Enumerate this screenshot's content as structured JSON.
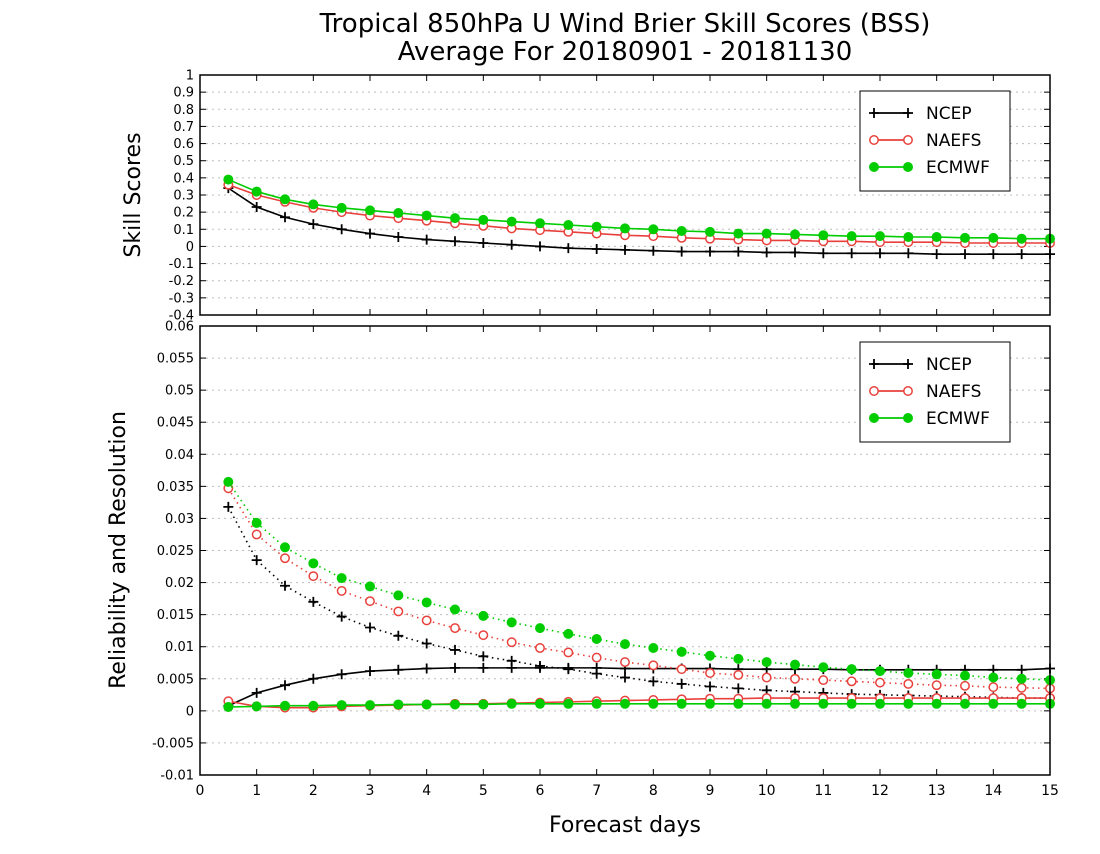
{
  "title_line1": "Tropical 850hPa U Wind Brier Skill Scores (BSS)",
  "title_line2": "Average For 20180901 - 20181130",
  "xlabel": "Forecast days",
  "colors": {
    "NCEP": "#000000",
    "NAEFS": "#e8413c",
    "ECMWF": "#00cc00"
  },
  "chart_data": [
    {
      "type": "line",
      "ylabel": "Skill Scores",
      "xlim": [
        0,
        15
      ],
      "ylim": [
        -0.4,
        1
      ],
      "xticks": [
        "0",
        "1",
        "2",
        "3",
        "4",
        "5",
        "6",
        "7",
        "8",
        "9",
        "10",
        "11",
        "12",
        "13",
        "14",
        "15"
      ],
      "yticks": [
        "1",
        "0.9",
        "0.8",
        "0.7",
        "0.6",
        "0.5",
        "0.4",
        "0.3",
        "0.2",
        "0.1",
        "0",
        "-0.1",
        "-0.2",
        "-0.3",
        "-0.4"
      ],
      "ytick_values": [
        1,
        0.9,
        0.8,
        0.7,
        0.6,
        0.5,
        0.4,
        0.3,
        0.2,
        0.1,
        0,
        -0.1,
        -0.2,
        -0.3,
        -0.4
      ],
      "grid": true,
      "legend": "top-right",
      "legend_entries": [
        "NCEP",
        "NAEFS",
        "ECMWF"
      ],
      "x": [
        0.5,
        1,
        1.5,
        2,
        2.5,
        3,
        3.5,
        4,
        4.5,
        5,
        5.5,
        6,
        6.5,
        7,
        7.5,
        8,
        8.5,
        9,
        9.5,
        10,
        10.5,
        11,
        11.5,
        12,
        12.5,
        13,
        13.5,
        14,
        14.5,
        15
      ],
      "series": [
        {
          "name": "NCEP",
          "style": "solid",
          "marker": "plus",
          "values": [
            0.34,
            0.23,
            0.17,
            0.13,
            0.1,
            0.075,
            0.055,
            0.04,
            0.03,
            0.02,
            0.01,
            0.0,
            -0.01,
            -0.015,
            -0.02,
            -0.025,
            -0.03,
            -0.03,
            -0.03,
            -0.035,
            -0.035,
            -0.04,
            -0.04,
            -0.04,
            -0.04,
            -0.045,
            -0.045,
            -0.045,
            -0.045,
            -0.045
          ]
        },
        {
          "name": "NAEFS",
          "style": "solid",
          "marker": "circle-open",
          "values": [
            0.36,
            0.3,
            0.26,
            0.225,
            0.2,
            0.18,
            0.165,
            0.15,
            0.135,
            0.12,
            0.105,
            0.095,
            0.085,
            0.075,
            0.065,
            0.06,
            0.05,
            0.045,
            0.04,
            0.035,
            0.035,
            0.03,
            0.03,
            0.025,
            0.025,
            0.025,
            0.02,
            0.02,
            0.02,
            0.02
          ]
        },
        {
          "name": "ECMWF",
          "style": "solid",
          "marker": "circle-filled",
          "values": [
            0.39,
            0.32,
            0.275,
            0.245,
            0.225,
            0.21,
            0.195,
            0.18,
            0.165,
            0.155,
            0.145,
            0.135,
            0.125,
            0.115,
            0.105,
            0.1,
            0.09,
            0.085,
            0.075,
            0.075,
            0.07,
            0.065,
            0.06,
            0.06,
            0.055,
            0.055,
            0.05,
            0.05,
            0.045,
            0.045
          ]
        }
      ]
    },
    {
      "type": "line",
      "ylabel": "Reliability and Resolution",
      "xlim": [
        0,
        15
      ],
      "ylim": [
        -0.01,
        0.06
      ],
      "xticks": [
        "0",
        "1",
        "2",
        "3",
        "4",
        "5",
        "6",
        "7",
        "8",
        "9",
        "10",
        "11",
        "12",
        "13",
        "14",
        "15"
      ],
      "yticks": [
        "0.06",
        "0.055",
        "0.05",
        "0.045",
        "0.04",
        "0.035",
        "0.03",
        "0.025",
        "0.02",
        "0.015",
        "0.01",
        "0.005",
        "0",
        "-0.005",
        "-0.01"
      ],
      "ytick_values": [
        0.06,
        0.055,
        0.05,
        0.045,
        0.04,
        0.035,
        0.03,
        0.025,
        0.02,
        0.015,
        0.01,
        0.005,
        0,
        -0.005,
        -0.01
      ],
      "grid": true,
      "legend": "top-right",
      "legend_entries": [
        "NCEP",
        "NAEFS",
        "ECMWF"
      ],
      "x": [
        0.5,
        1,
        1.5,
        2,
        2.5,
        3,
        3.5,
        4,
        4.5,
        5,
        5.5,
        6,
        6.5,
        7,
        7.5,
        8,
        8.5,
        9,
        9.5,
        10,
        10.5,
        11,
        11.5,
        12,
        12.5,
        13,
        13.5,
        14,
        14.5,
        15
      ],
      "series": [
        {
          "name": "NCEP",
          "style": "dotted",
          "marker": "plus",
          "values": [
            0.0318,
            0.0235,
            0.0195,
            0.017,
            0.0147,
            0.013,
            0.0117,
            0.0105,
            0.0095,
            0.0085,
            0.0078,
            0.007,
            0.0065,
            0.0058,
            0.0052,
            0.0046,
            0.0042,
            0.0038,
            0.0035,
            0.0032,
            0.003,
            0.0028,
            0.0026,
            0.0025,
            0.0024,
            0.0023,
            0.0022,
            0.0021,
            0.002,
            0.002
          ]
        },
        {
          "name": "NCEP",
          "style": "solid",
          "marker": "plus",
          "values": [
            0.0008,
            0.0028,
            0.004,
            0.005,
            0.0057,
            0.0062,
            0.0064,
            0.0066,
            0.0067,
            0.0067,
            0.0067,
            0.0067,
            0.0067,
            0.0067,
            0.0066,
            0.0066,
            0.0066,
            0.0066,
            0.0065,
            0.0065,
            0.0065,
            0.0065,
            0.0064,
            0.0064,
            0.0064,
            0.0064,
            0.0064,
            0.0064,
            0.0064,
            0.0066
          ]
        },
        {
          "name": "NAEFS",
          "style": "dotted",
          "marker": "circle-open",
          "values": [
            0.0347,
            0.0275,
            0.0238,
            0.021,
            0.0187,
            0.0171,
            0.0155,
            0.0141,
            0.0129,
            0.0118,
            0.0107,
            0.0098,
            0.0091,
            0.0083,
            0.0076,
            0.0071,
            0.0065,
            0.0059,
            0.0056,
            0.0052,
            0.005,
            0.0048,
            0.0046,
            0.0044,
            0.0042,
            0.004,
            0.0039,
            0.0037,
            0.0036,
            0.0035
          ]
        },
        {
          "name": "NAEFS",
          "style": "solid",
          "marker": "circle-open",
          "values": [
            0.0015,
            0.0007,
            0.0005,
            0.0005,
            0.0007,
            0.0008,
            0.0009,
            0.001,
            0.0011,
            0.0011,
            0.0012,
            0.0013,
            0.0014,
            0.0015,
            0.0016,
            0.0017,
            0.0018,
            0.0019,
            0.0019,
            0.002,
            0.002,
            0.002,
            0.002,
            0.002,
            0.002,
            0.002,
            0.002,
            0.002,
            0.002,
            0.002
          ]
        },
        {
          "name": "ECMWF",
          "style": "dotted",
          "marker": "circle-filled",
          "values": [
            0.0357,
            0.0293,
            0.0255,
            0.023,
            0.0207,
            0.0194,
            0.018,
            0.0169,
            0.0158,
            0.0148,
            0.0138,
            0.0129,
            0.012,
            0.0112,
            0.0104,
            0.0098,
            0.0092,
            0.0086,
            0.0081,
            0.0076,
            0.0072,
            0.0068,
            0.0065,
            0.0062,
            0.0059,
            0.0057,
            0.0055,
            0.0052,
            0.005,
            0.0048
          ]
        },
        {
          "name": "ECMWF",
          "style": "solid",
          "marker": "circle-filled",
          "values": [
            0.0006,
            0.0007,
            0.0008,
            0.0008,
            0.0009,
            0.0009,
            0.001,
            0.001,
            0.001,
            0.001,
            0.0011,
            0.0011,
            0.0011,
            0.0011,
            0.0011,
            0.0011,
            0.0011,
            0.0011,
            0.0011,
            0.0011,
            0.0011,
            0.0011,
            0.0011,
            0.0011,
            0.0011,
            0.0011,
            0.0011,
            0.0011,
            0.0011,
            0.0011
          ]
        }
      ]
    }
  ]
}
